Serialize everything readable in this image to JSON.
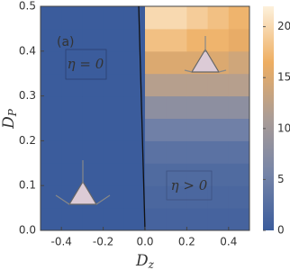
{
  "chart_data": {
    "type": "heatmap",
    "xlabel": {
      "main": "D",
      "sub": "z"
    },
    "ylabel": {
      "main": "D",
      "sub": "P"
    },
    "xlim": [
      -0.5,
      0.5
    ],
    "ylim": [
      0,
      0.5
    ],
    "xticks": [
      -0.4,
      -0.2,
      {
        "value": 0,
        "label": "0.0"
      },
      0.2,
      0.4
    ],
    "yticks": [
      {
        "value": 0,
        "label": "0.0"
      },
      0.1,
      0.2,
      0.3,
      0.4,
      0.5
    ],
    "x_edges": [
      -0.5,
      -0.4,
      -0.3,
      -0.2,
      -0.1,
      0,
      0.1,
      0.2,
      0.3,
      0.4,
      0.5
    ],
    "y_edges": [
      0,
      0.05,
      0.1,
      0.15,
      0.2,
      0.25,
      0.3,
      0.35,
      0.4,
      0.45,
      0.5
    ],
    "z": [
      [
        0,
        0,
        0,
        0,
        0,
        1,
        1,
        1,
        1,
        1
      ],
      [
        0,
        0,
        0,
        0,
        0,
        1.5,
        1.5,
        1.5,
        1.5,
        1.5
      ],
      [
        0,
        0,
        0,
        0,
        0,
        2,
        2,
        2,
        2,
        2
      ],
      [
        0,
        0,
        0,
        0,
        0,
        3,
        3,
        3,
        3,
        3
      ],
      [
        0,
        0,
        0,
        0,
        0,
        5,
        5,
        5,
        5,
        5
      ],
      [
        0,
        0,
        0,
        0,
        0,
        8,
        8,
        8,
        8,
        8
      ],
      [
        0,
        0,
        0,
        0,
        0,
        12,
        12,
        12,
        12,
        12
      ],
      [
        0,
        0,
        0,
        0,
        0,
        15,
        15,
        15,
        15,
        14
      ],
      [
        0,
        0,
        0,
        0,
        0,
        18,
        18,
        17,
        17,
        16
      ],
      [
        0,
        0,
        0,
        0,
        0,
        20,
        20,
        19,
        18,
        17
      ]
    ],
    "clim": [
      0,
      22
    ],
    "cticks": [
      0,
      5,
      10,
      15,
      20
    ],
    "colormap": [
      "#3b5c9c",
      "#7584a8",
      "#aa9c96",
      "#eeae62",
      "#fdf1dc"
    ],
    "boundary": {
      "x": [
        -0.03,
        0.0
      ],
      "y": [
        0.5,
        0.0
      ]
    },
    "annotations": [
      "(a)",
      "η = 0",
      "η > 0"
    ]
  }
}
